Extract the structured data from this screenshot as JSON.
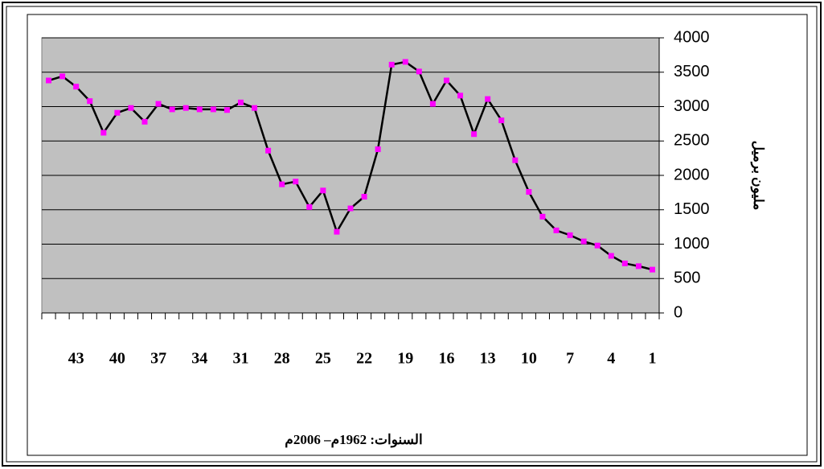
{
  "chart_data": {
    "type": "line",
    "x_label": "السنوات: 1962م– 2006م",
    "y_label": "مليون برميل",
    "categories": [
      "1",
      null,
      null,
      "4",
      null,
      null,
      "7",
      null,
      null,
      "10",
      null,
      null,
      "13",
      null,
      null,
      "16",
      null,
      null,
      "19",
      null,
      null,
      "22",
      null,
      null,
      "25",
      null,
      null,
      "28",
      null,
      null,
      "31",
      null,
      null,
      "34",
      null,
      null,
      "37",
      null,
      null,
      "40",
      null,
      null,
      "43",
      null,
      null
    ],
    "x_reversed": true,
    "series": [
      {
        "color": "#000000",
        "marker_color": "#ff00ff",
        "values": [
          630,
          680,
          720,
          830,
          980,
          1040,
          1130,
          1200,
          1400,
          1760,
          2220,
          2800,
          3110,
          2600,
          3160,
          3380,
          3040,
          3510,
          3650,
          3610,
          2380,
          1690,
          1520,
          1180,
          1780,
          1540,
          1910,
          1870,
          2360,
          2980,
          3060,
          2950,
          2960,
          2960,
          2980,
          2960,
          3040,
          2780,
          2980,
          2910,
          2620,
          3080,
          3290,
          3440,
          3380
        ]
      }
    ],
    "ylim": [
      0,
      4000
    ],
    "yticks": [
      0,
      500,
      1000,
      1500,
      2000,
      2500,
      3000,
      3500,
      4000
    ],
    "y_axis_side": "right",
    "grid": true,
    "plot_background": "#c0c0c0"
  }
}
